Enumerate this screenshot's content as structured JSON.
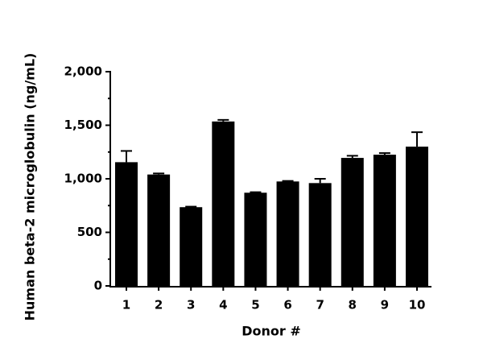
{
  "chart_data": {
    "type": "bar",
    "y_label": "Human beta-2 microglobulin (ng/mL)",
    "x_label": "Donor #",
    "categories": [
      "1",
      "2",
      "3",
      "4",
      "5",
      "6",
      "7",
      "8",
      "9",
      "10"
    ],
    "values": [
      1155,
      1040,
      735,
      1535,
      870,
      975,
      960,
      1195,
      1225,
      1300
    ],
    "errors": [
      105,
      10,
      5,
      15,
      5,
      5,
      40,
      20,
      15,
      135
    ],
    "color": "#000000",
    "ylim": [
      0,
      2000
    ],
    "yticks": [
      0,
      500,
      {
        "value": 1000,
        "label": "1,000"
      },
      {
        "value": 1500,
        "label": "1,500"
      },
      {
        "value": 2000,
        "label": "2,000"
      }
    ],
    "yminor_ticks": [
      250,
      750,
      1250,
      1750
    ],
    "grid": false
  }
}
